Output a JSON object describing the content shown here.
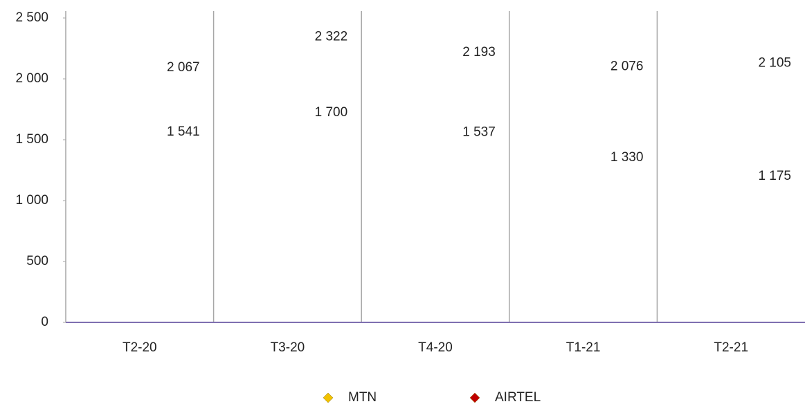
{
  "chart_data": {
    "type": "line",
    "categories": [
      "T2-20",
      "T3-20",
      "T4-20",
      "T1-21",
      "T2-21"
    ],
    "series": [
      {
        "name": "MTN",
        "color": "#f2c200",
        "values": [
          2067,
          2322,
          2193,
          2076,
          2105
        ],
        "value_labels": [
          "2 067",
          "2 322",
          "2 193",
          "2 076",
          "2 105"
        ]
      },
      {
        "name": "AIRTEL",
        "color": "#c00000",
        "values": [
          1541,
          1700,
          1537,
          1330,
          1175
        ],
        "value_labels": [
          "1 541",
          "1 700",
          "1 537",
          "1 330",
          "1 175"
        ]
      }
    ],
    "ylim": [
      0,
      2500
    ],
    "yticks": [
      0,
      500,
      {
        "value": 1000,
        "label": "1 000"
      },
      {
        "value": 1500,
        "label": "1 500"
      },
      {
        "value": 2000,
        "label": "2 000"
      },
      {
        "value": 2500,
        "label": "2 500"
      }
    ],
    "legend": "bottom"
  }
}
